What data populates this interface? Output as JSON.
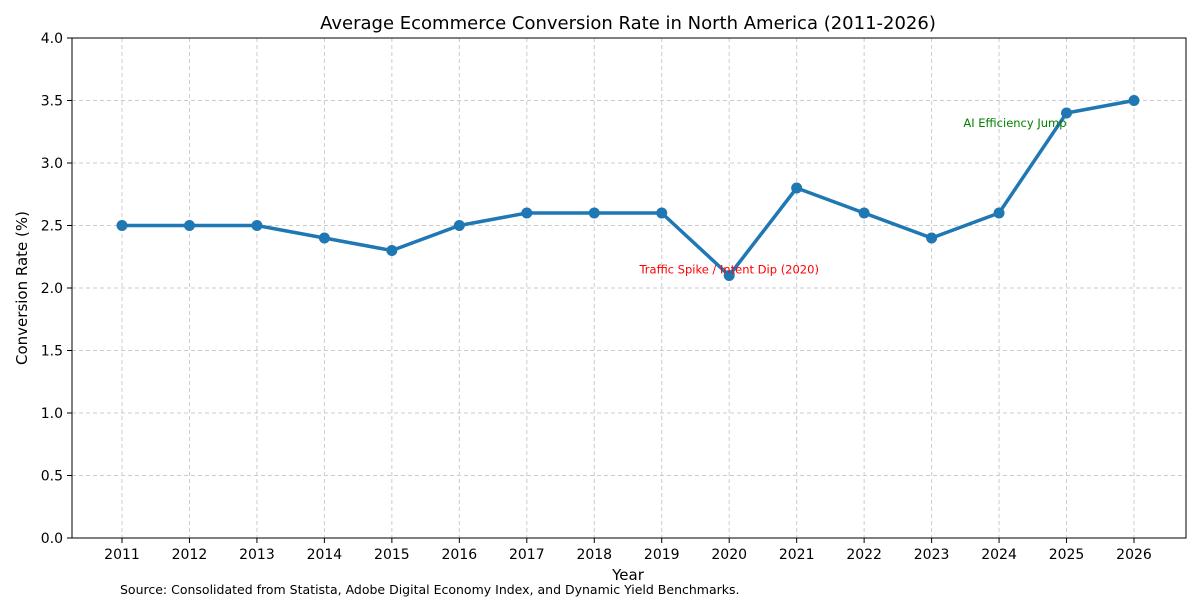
{
  "chart_data": {
    "type": "line",
    "title": "Average Ecommerce Conversion Rate in North America (2011-2026)",
    "xlabel": "Year",
    "ylabel": "Conversion Rate (%)",
    "x": [
      "2011",
      "2012",
      "2013",
      "2014",
      "2015",
      "2016",
      "2017",
      "2018",
      "2019",
      "2020",
      "2021",
      "2022",
      "2023",
      "2024",
      "2025",
      "2026"
    ],
    "series": [
      {
        "name": "Conversion Rate",
        "color": "#1f77b4",
        "values": [
          2.5,
          2.5,
          2.5,
          2.4,
          2.3,
          2.5,
          2.6,
          2.6,
          2.6,
          2.1,
          2.8,
          2.6,
          2.4,
          2.6,
          3.4,
          3.5
        ]
      }
    ],
    "ylim": [
      0,
      4.0
    ],
    "yticks": [
      "0.0",
      "0.5",
      "1.0",
      "1.5",
      "2.0",
      "2.5",
      "3.0",
      "3.5",
      "4.0"
    ],
    "grid": true,
    "annotations": [
      {
        "text": "Traffic Spike / Intent Dip (2020)",
        "x": "2020",
        "y": 2.15,
        "color": "#ff0000",
        "align": "center"
      },
      {
        "text": "AI Efficiency Jump",
        "x": "2025",
        "y": 3.32,
        "color": "#008000",
        "align": "right"
      }
    ],
    "source": "Source: Consolidated from Statista, Adobe Digital Economy Index, and Dynamic Yield Benchmarks."
  }
}
